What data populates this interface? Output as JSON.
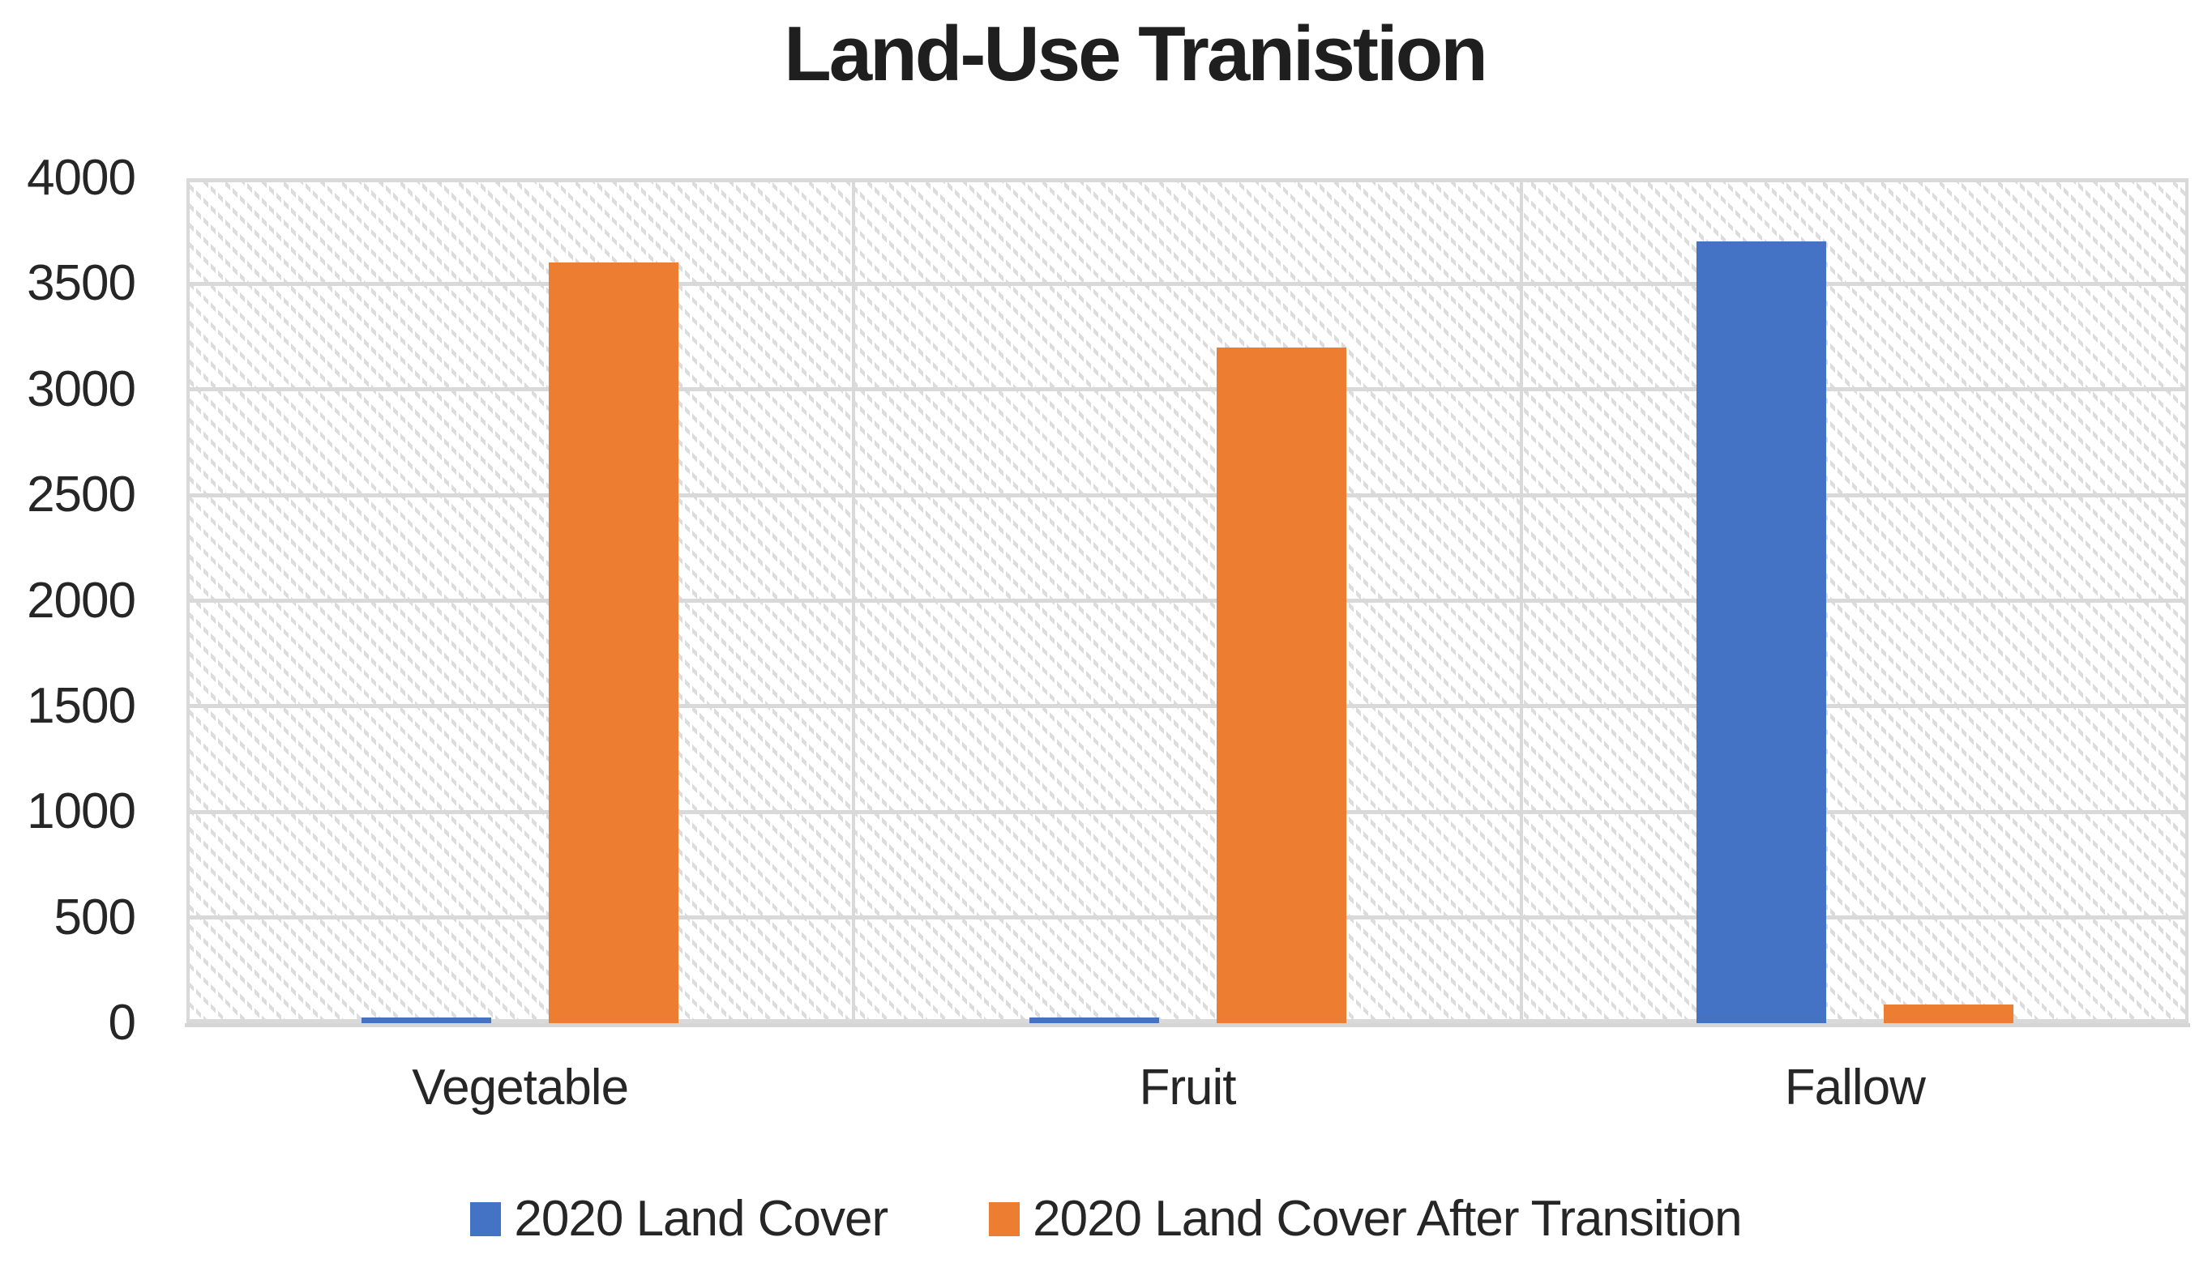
{
  "chart_data": {
    "type": "bar",
    "title": "Land-Use Tranistion",
    "categories": [
      "Vegetable",
      "Fruit",
      "Fallow"
    ],
    "series": [
      {
        "name": "2020 Land Cover",
        "color": "#4472C4",
        "values": [
          25,
          25,
          3700
        ]
      },
      {
        "name": "2020 Land Cover After Transition",
        "color": "#ED7D31",
        "values": [
          3600,
          3200,
          90
        ]
      }
    ],
    "ylim": [
      0,
      4000
    ],
    "ytick_step": 500,
    "yticks": [
      4000,
      3500,
      3000,
      2500,
      2000,
      1500,
      1000,
      500,
      0
    ],
    "xlabel": "",
    "ylabel": "",
    "grid": "horizontal gridlines every 500 plus vertical category separators",
    "plot_background": "white with light-gray dotted downward-diagonal hatch",
    "legend_position": "bottom",
    "gridline_color": "#D9D9D9",
    "text_color": "#262626"
  }
}
